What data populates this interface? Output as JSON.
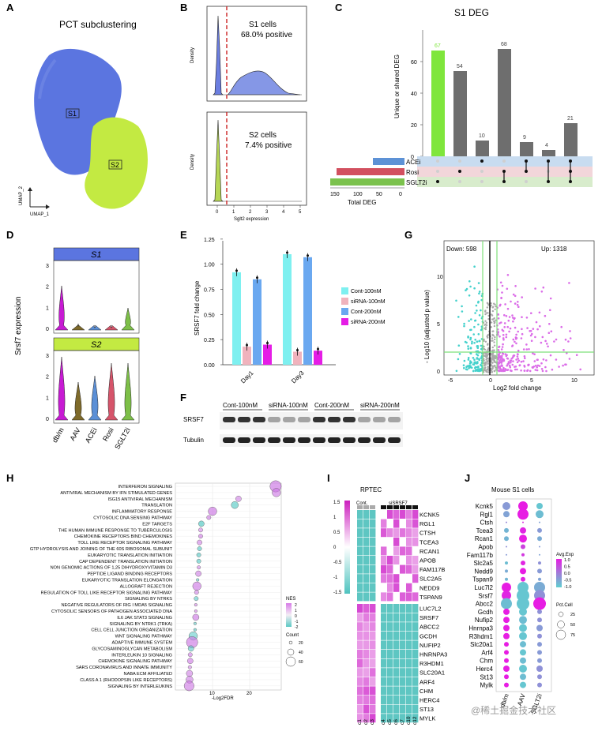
{
  "panels": {
    "A": "A",
    "B": "B",
    "C": "C",
    "D": "D",
    "E": "E",
    "F": "F",
    "G": "G",
    "H": "H",
    "I": "I",
    "J": "J"
  },
  "panelA": {
    "title": "PCT subclustering",
    "cluster1": "S1",
    "cluster2": "S2",
    "xaxis": "UMAP_1",
    "yaxis": "UMAP_2",
    "colors": {
      "s1": "#5b75e0",
      "s2": "#c3ea42"
    }
  },
  "panelB": {
    "top": {
      "name": "S1 cells",
      "pct": "68.0% positive",
      "ylabel": "Density"
    },
    "bottom": {
      "name": "S2 cells",
      "pct": "7.4% positive",
      "ylabel": "Density"
    },
    "xlabel": "Sglt2 expression",
    "xticks": [
      "0",
      "1",
      "2",
      "3",
      "4",
      "5"
    ]
  },
  "panelC": {
    "title": "S1 DEG",
    "ylabel": "Unique or shared DEG",
    "yticks": [
      "0",
      "20",
      "40",
      "60"
    ],
    "bars": [
      67,
      54,
      10,
      68,
      9,
      4,
      21
    ],
    "sets": [
      "ACEi",
      "Rosi",
      "SGLT2i"
    ],
    "totals_label": "Total DEG",
    "totals_ticks": [
      "150",
      "100",
      "50",
      "0"
    ]
  },
  "panelD": {
    "ylabel": "Srsf7 expression",
    "strip1": "S1",
    "strip2": "S2",
    "groups": [
      "db/m",
      "AAV",
      "ACEi",
      "Rosi",
      "SGLT2i"
    ],
    "yticks": [
      "0",
      "1",
      "2",
      "3"
    ]
  },
  "panelE": {
    "ylabel": "SRSF7 fold change",
    "yticks": [
      "0.00",
      "0.25",
      "0.50",
      "0.75",
      "1.00",
      "1.25"
    ],
    "days": [
      "Day1",
      "Day3"
    ],
    "legend": [
      "Cont-100nM",
      "siRNA-100nM",
      "Cont-200nM",
      "siRNA-200nM"
    ],
    "values": {
      "Day1": [
        0.92,
        0.18,
        0.85,
        0.2
      ],
      "Day3": [
        1.1,
        0.13,
        1.07,
        0.14
      ]
    }
  },
  "panelF": {
    "groups": [
      "Cont-100nM",
      "siRNA-100nM",
      "Cont-200nM",
      "siRNA-200nM"
    ],
    "rows": [
      "SRSF7",
      "Tubulin"
    ]
  },
  "panelG": {
    "down": "Down: 598",
    "up": "Up: 1318",
    "xlabel": "Log2 fold change",
    "ylabel": "- Log10 (adjusted p value)",
    "xticks": [
      "-5",
      "0",
      "5",
      "10"
    ],
    "yticks": [
      "0",
      "5",
      "10"
    ]
  },
  "panelH": {
    "xlabel": "-Log2FDR",
    "xticks": [
      "10",
      "20"
    ],
    "legend_nes_title": "NES",
    "legend_nes": [
      "2",
      "1",
      "0",
      "-1",
      "-2"
    ],
    "legend_count_title": "Count",
    "legend_count": [
      "20",
      "40",
      "60"
    ],
    "terms": [
      {
        "name": "INTERFERON SIGNALING",
        "x": 27,
        "size": 8,
        "nes": 1.8
      },
      {
        "name": "ANTIVIRAL MECHANISM BY IFN STIMULATED GENES",
        "x": 27.2,
        "size": 6,
        "nes": 1.6
      },
      {
        "name": "ISG15 ANTIVIRAL MECHANISM",
        "x": 17,
        "size": 4,
        "nes": 1.2
      },
      {
        "name": "TRANSLATION",
        "x": 16,
        "size": 5,
        "nes": -1.5
      },
      {
        "name": "INFLAMMATORY RESPONSE",
        "x": 10,
        "size": 6,
        "nes": 1.8
      },
      {
        "name": "CYTOSOLIC DNA SENSING PATHWAY",
        "x": 9,
        "size": 3,
        "nes": 1.4
      },
      {
        "name": "E2F TARGETS",
        "x": 7,
        "size": 4,
        "nes": -1.8
      },
      {
        "name": "THE HUMAN IMMUNE RESPONSE TO TUBERCULOSIS",
        "x": 6.8,
        "size": 3,
        "nes": 1.0
      },
      {
        "name": "CHEMOKINE RECEPTORS BIND CHEMOKINES",
        "x": 6.8,
        "size": 3,
        "nes": 1.5
      },
      {
        "name": "TOLL LIKE RECEPTOR SIGNALING PATHWAY",
        "x": 6.5,
        "size": 3.5,
        "nes": 1.2
      },
      {
        "name": "GTP HYDROLYSIS AND JOINING OF THE 60S RIBOSOMAL SUBUNIT",
        "x": 6.5,
        "size": 3,
        "nes": -1.4
      },
      {
        "name": "EUKARYOTIC TRANSLATION INITIATION",
        "x": 6.3,
        "size": 3,
        "nes": -1.4
      },
      {
        "name": "CAP DEPENDENT TRANSLATION INITIATION",
        "x": 6.3,
        "size": 3,
        "nes": -1.4
      },
      {
        "name": "NON GENOMIC ACTIONS OF 1,25 DIHYDROXYVITAMIN D3",
        "x": 6.3,
        "size": 2.5,
        "nes": 1.0
      },
      {
        "name": "PEPTIDE LIGAND BINDING RECEPTORS",
        "x": 6.2,
        "size": 4,
        "nes": 1.3
      },
      {
        "name": "EUKARYOTIC TRANSLATION ELONGATION",
        "x": 6,
        "size": 2,
        "nes": -1.0
      },
      {
        "name": "ALLOGRAFT REJECTION",
        "x": 5.8,
        "size": 6,
        "nes": 1.6
      },
      {
        "name": "REGULATION OF TOLL LIKE RECEPTOR SIGNALING PATHWAY",
        "x": 5.7,
        "size": 3,
        "nes": 1.2
      },
      {
        "name": "SIGNALING BY NTRKS",
        "x": 5.6,
        "size": 3,
        "nes": -1.2
      },
      {
        "name": "NEGATIVE REGULATORS OF RIG I MDA5 SIGNALING",
        "x": 5.5,
        "size": 2,
        "nes": 1.0
      },
      {
        "name": "CYTOSOLIC SENSORS OF PATHOGEN ASSOCIATED DNA",
        "x": 5.5,
        "size": 2,
        "nes": 1.0
      },
      {
        "name": "IL6 JAK STAT3 SIGNALING",
        "x": 5.5,
        "size": 4.5,
        "nes": 1.6
      },
      {
        "name": "SIGNALING BY NTRK1 (TRKA)",
        "x": 5.3,
        "size": 2,
        "nes": -1.0
      },
      {
        "name": "CELL CELL JUNCTION ORGANIZATION",
        "x": 5.3,
        "size": 2,
        "nes": -1.3
      },
      {
        "name": "WNT SIGNALING PATHWAY",
        "x": 4.8,
        "size": 6,
        "nes": -1.0
      },
      {
        "name": "ADAPTIVE IMMUNE SYSTEM",
        "x": 4.5,
        "size": 8,
        "nes": 1.7
      },
      {
        "name": "GLYCOSAMINOGLYCAN METABOLISM",
        "x": 4.2,
        "size": 4,
        "nes": -1.2
      },
      {
        "name": "INTERLEUKIN 10 SIGNALING",
        "x": 4,
        "size": 3,
        "nes": 1.3
      },
      {
        "name": "CHEMOKINE SIGNALING PATHWAY",
        "x": 4,
        "size": 4,
        "nes": 1.5
      },
      {
        "name": "SARS CORONAVIRUS AND INNATE IMMUNITY",
        "x": 3.9,
        "size": 2.5,
        "nes": 1.0
      },
      {
        "name": "NABA ECM AFFILIATED",
        "x": 3.8,
        "size": 4.5,
        "nes": 1.2
      },
      {
        "name": "CLASS A 1 (RHODOPSIN LIKE RECEPTORS)",
        "x": 3.8,
        "size": 5,
        "nes": 1.3
      },
      {
        "name": "SIGNALING BY INTERLEUKINS",
        "x": 3.7,
        "size": 7,
        "nes": 1.5
      }
    ]
  },
  "panelI": {
    "title": "RPTEC",
    "group1": "Cont.",
    "group2": "siSRSF7",
    "scale": [
      "1.5",
      "1",
      "0.5",
      "0",
      "-0.5",
      "-1",
      "-1.5"
    ],
    "genes": [
      "KCNK5",
      "RGL1",
      "CTSH",
      "TCEA3",
      "RCAN1",
      "APOB",
      "FAM117B",
      "SLC2A5",
      "NEDD9",
      "TSPAN9",
      "LUC7L2",
      "SRSF7",
      "ABCC2",
      "GCDH",
      "NUFIP2",
      "HNRNPA3",
      "R3HDM1",
      "SLC20A1",
      "ARF4",
      "CHM",
      "HERC4",
      "ST13",
      "MYLK"
    ],
    "cols": [
      "c1",
      "c2",
      "c3",
      "c4",
      "c5",
      "c6",
      "c7",
      "c10",
      "c12"
    ]
  },
  "panelJ": {
    "title": "Mouse S1 cells",
    "groups": [
      "db/m",
      "AAV",
      "SGLT2i"
    ],
    "genes": [
      "Kcnk5",
      "Rgl1",
      "Ctsh",
      "Tcea3",
      "Rcan1",
      "Apob",
      "Fam117b",
      "Slc2a5",
      "Nedd9",
      "Tspan9",
      "Luc7l2",
      "Srsf7",
      "Abcc2",
      "Gcdh",
      "Nufip2",
      "Hnrnpa3",
      "R3hdm1",
      "Slc20a1",
      "Arf4",
      "Chm",
      "Herc4",
      "St13",
      "Mylk"
    ],
    "legend_exp_title": "Avg.Exp",
    "legend_exp": [
      "1.0",
      "0.5",
      "0.0",
      "-0.5",
      "-1.0"
    ],
    "legend_pct_title": "Pct.Cell",
    "legend_pct": [
      "25",
      "50",
      "75"
    ]
  },
  "watermark": "@稀土掘金技术社区"
}
